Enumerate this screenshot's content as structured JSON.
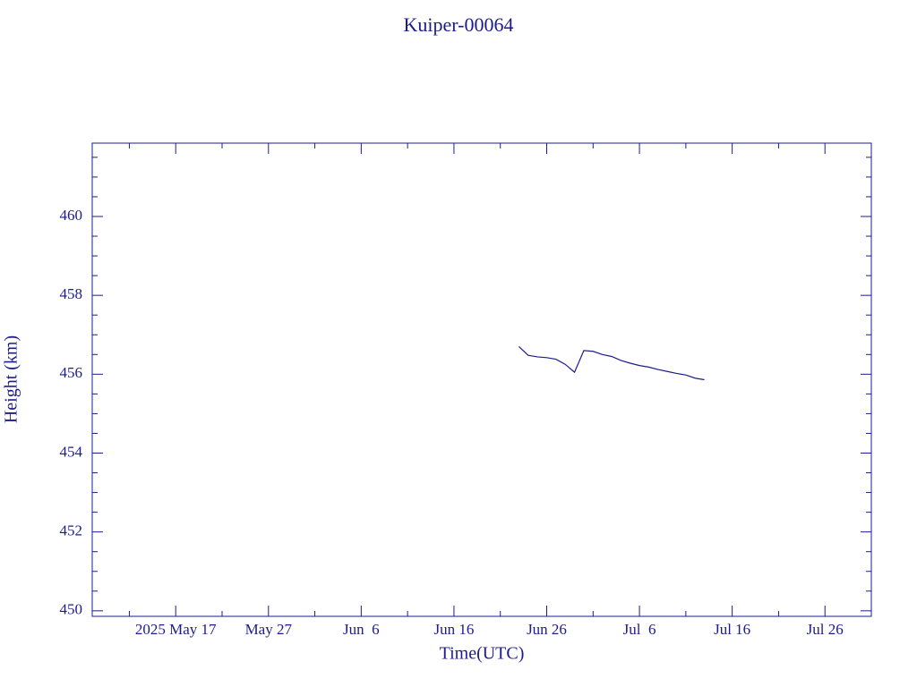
{
  "chart_data": {
    "type": "line",
    "title": "Kuiper-00064",
    "x_label": "Time(UTC)",
    "y_label": "Height (km)",
    "x": [
      "2025-06-23",
      "2025-06-24",
      "2025-06-25",
      "2025-06-26",
      "2025-06-27",
      "2025-06-28",
      "2025-06-29",
      "2025-06-30",
      "2025-07-01",
      "2025-07-02",
      "2025-07-03",
      "2025-07-04",
      "2025-07-05",
      "2025-07-06",
      "2025-07-07",
      "2025-07-08",
      "2025-07-09",
      "2025-07-10",
      "2025-07-11",
      "2025-07-12",
      "2025-07-13"
    ],
    "series": [
      {
        "color": "#00006e",
        "values": [
          456.7,
          456.48,
          456.44,
          456.42,
          456.38,
          456.25,
          456.05,
          456.6,
          456.58,
          456.5,
          456.45,
          456.35,
          456.28,
          456.22,
          456.18,
          456.12,
          456.07,
          456.02,
          455.98,
          455.9,
          455.86
        ]
      }
    ],
    "xlim": [
      "2025-05-08",
      "2025-07-31"
    ],
    "xticks": [
      {
        "value": "2025-05-17",
        "label": "2025 May 17"
      },
      {
        "value": "2025-05-27",
        "label": "May 27"
      },
      {
        "value": "2025-06-06",
        "label": "Jun  6"
      },
      {
        "value": "2025-06-16",
        "label": "Jun 16"
      },
      {
        "value": "2025-06-26",
        "label": "Jun 26"
      },
      {
        "value": "2025-07-06",
        "label": "Jul  6"
      },
      {
        "value": "2025-07-16",
        "label": "Jul 16"
      },
      {
        "value": "2025-07-26",
        "label": "Jul 26"
      }
    ],
    "xminorticks": [
      "2025-05-12",
      "2025-05-22",
      "2025-06-01",
      "2025-06-11",
      "2025-06-21",
      "2025-07-01",
      "2025-07-11",
      "2025-07-21",
      "2025-07-31"
    ],
    "ylim": [
      449.86,
      461.86
    ],
    "yticks": [
      450,
      452,
      454,
      456,
      458,
      460
    ],
    "yminorticks": [
      450.5,
      451,
      451.5,
      452.5,
      453,
      453.5,
      454.5,
      455,
      455.5,
      456.5,
      457,
      457.5,
      458.5,
      459,
      459.5,
      460.5,
      461,
      461.5
    ]
  }
}
